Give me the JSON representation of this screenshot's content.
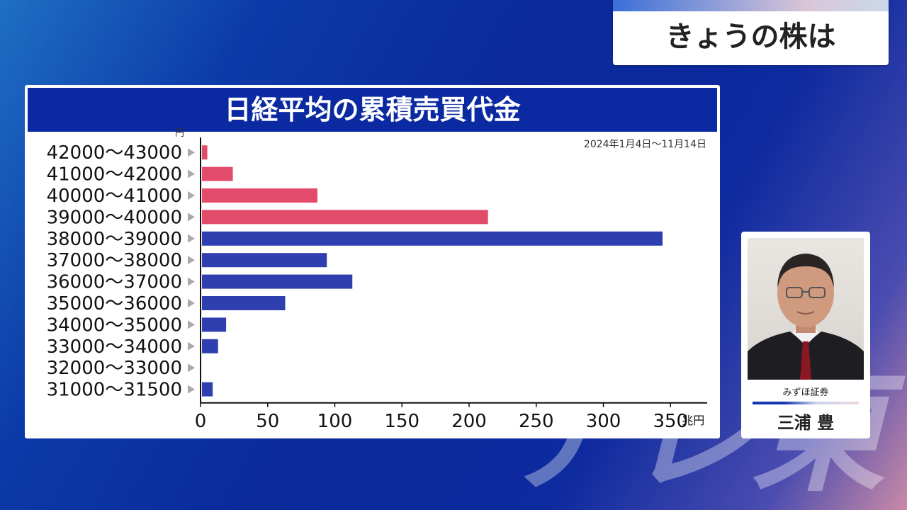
{
  "program_title": "きょうの株は",
  "watermark": "テレ東",
  "chart_data": {
    "type": "bar",
    "orientation": "horizontal",
    "title": "日経平均の累積売買代金",
    "subtitle": "2024年1月4日〜11月14日",
    "ylabel": "円",
    "xlabel": "兆円",
    "categories": [
      "42000〜43000",
      "41000〜42000",
      "40000〜41000",
      "39000〜40000",
      "38000〜39000",
      "37000〜38000",
      "36000〜37000",
      "35000〜36000",
      "34000〜35000",
      "33000〜34000",
      "32000〜33000",
      "31000〜31500"
    ],
    "values": [
      4,
      23,
      86,
      213,
      343,
      93,
      112,
      62,
      18,
      12,
      0,
      8
    ],
    "colors": [
      "#e24b6a",
      "#e24b6a",
      "#e24b6a",
      "#e24b6a",
      "#2f3fb0",
      "#2f3fb0",
      "#2f3fb0",
      "#2f3fb0",
      "#2f3fb0",
      "#2f3fb0",
      "#2f3fb0",
      "#2f3fb0"
    ],
    "xlim": [
      0,
      370
    ],
    "xticks": [
      "0",
      "50",
      "100",
      "150",
      "200",
      "250",
      "300",
      "350"
    ],
    "grid": false
  },
  "commentator": {
    "company": "みずほ証券",
    "name": "三浦 豊"
  }
}
